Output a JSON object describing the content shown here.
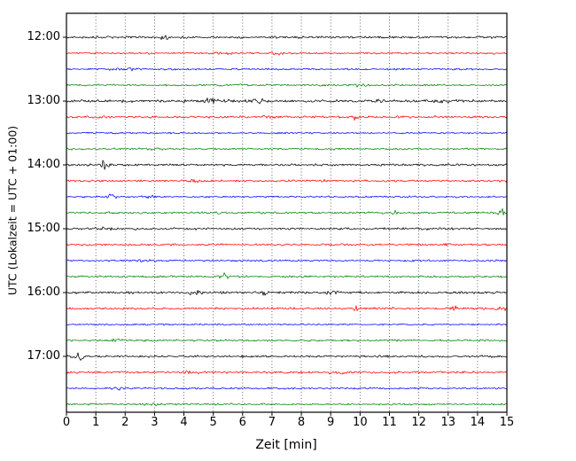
{
  "chart_data": {
    "type": "line",
    "title": "",
    "xlabel": "Zeit [min]",
    "ylabel": "UTC (Lokalzeit = UTC + 01:00)",
    "xlim": [
      0,
      15
    ],
    "x_ticks": [
      "0",
      "1",
      "2",
      "3",
      "4",
      "5",
      "6",
      "7",
      "8",
      "9",
      "10",
      "11",
      "12",
      "13",
      "14",
      "15"
    ],
    "y_hour_labels": [
      "12:00",
      "13:00",
      "14:00",
      "15:00",
      "16:00",
      "17:00"
    ],
    "grid": "vertical-dotted",
    "legend": "none",
    "trace_colors": {
      "black": "#000000",
      "red": "#ff0000",
      "blue": "#0000ff",
      "green": "#008000"
    },
    "rows": [
      {
        "start": "12:00",
        "color": "black",
        "seed": 101,
        "base": 1.0,
        "events": [
          {
            "t": 3.35,
            "amp": 3.2,
            "w": 0.12
          }
        ]
      },
      {
        "start": "12:15",
        "color": "red",
        "seed": 102,
        "base": 0.8,
        "events": [
          {
            "t": 5.5,
            "amp": 1.0,
            "w": 0.3
          },
          {
            "t": 7.2,
            "amp": 0.9,
            "w": 0.2
          }
        ]
      },
      {
        "start": "12:30",
        "color": "blue",
        "seed": 103,
        "base": 0.8,
        "events": [
          {
            "t": 2.0,
            "amp": 0.8,
            "w": 0.4
          },
          {
            "t": 7.0,
            "amp": 0.7,
            "w": 0.3
          }
        ]
      },
      {
        "start": "12:45",
        "color": "green",
        "seed": 104,
        "base": 0.8,
        "events": [
          {
            "t": 10.0,
            "amp": 0.7,
            "w": 0.3
          }
        ]
      },
      {
        "start": "13:00",
        "color": "black",
        "seed": 105,
        "base": 1.2,
        "events": [
          {
            "t": 4.9,
            "amp": 1.8,
            "w": 0.3
          },
          {
            "t": 6.5,
            "amp": 1.2,
            "w": 0.3
          },
          {
            "t": 10.6,
            "amp": 1.7,
            "w": 0.15
          },
          {
            "t": 12.8,
            "amp": 1.2,
            "w": 0.4
          }
        ]
      },
      {
        "start": "13:15",
        "color": "red",
        "seed": 106,
        "base": 1.0,
        "events": [
          {
            "t": 6.9,
            "amp": 1.7,
            "w": 0.2
          },
          {
            "t": 9.85,
            "amp": 2.4,
            "w": 0.1
          }
        ]
      },
      {
        "start": "13:30",
        "color": "blue",
        "seed": 107,
        "base": 0.7,
        "events": []
      },
      {
        "start": "13:45",
        "color": "green",
        "seed": 108,
        "base": 0.8,
        "events": [
          {
            "t": 3.0,
            "amp": 0.7,
            "w": 0.3
          }
        ]
      },
      {
        "start": "14:00",
        "color": "black",
        "seed": 109,
        "base": 1.0,
        "events": [
          {
            "t": 1.3,
            "amp": 3.0,
            "w": 0.18
          }
        ]
      },
      {
        "start": "14:15",
        "color": "red",
        "seed": 110,
        "base": 0.9,
        "events": [
          {
            "t": 4.35,
            "amp": 2.2,
            "w": 0.12
          },
          {
            "t": 8.7,
            "amp": 2.4,
            "w": 0.12
          }
        ]
      },
      {
        "start": "14:30",
        "color": "blue",
        "seed": 111,
        "base": 0.8,
        "events": [
          {
            "t": 1.5,
            "amp": 1.8,
            "w": 0.15
          },
          {
            "t": 2.9,
            "amp": 1.0,
            "w": 0.2
          }
        ]
      },
      {
        "start": "14:45",
        "color": "green",
        "seed": 112,
        "base": 0.9,
        "events": [
          {
            "t": 11.2,
            "amp": 1.3,
            "w": 0.2
          },
          {
            "t": 14.75,
            "amp": 3.6,
            "w": 0.15
          }
        ]
      },
      {
        "start": "15:00",
        "color": "black",
        "seed": 113,
        "base": 1.0,
        "events": [
          {
            "t": 1.2,
            "amp": 1.0,
            "w": 0.3
          }
        ]
      },
      {
        "start": "15:15",
        "color": "red",
        "seed": 114,
        "base": 0.9,
        "events": [
          {
            "t": 3.55,
            "amp": 2.2,
            "w": 0.12
          },
          {
            "t": 13.0,
            "amp": 1.0,
            "w": 0.2
          }
        ]
      },
      {
        "start": "15:30",
        "color": "blue",
        "seed": 115,
        "base": 0.8,
        "events": [
          {
            "t": 2.5,
            "amp": 1.3,
            "w": 0.2
          }
        ]
      },
      {
        "start": "15:45",
        "color": "green",
        "seed": 116,
        "base": 0.9,
        "events": [
          {
            "t": 5.35,
            "amp": 3.0,
            "w": 0.15
          }
        ]
      },
      {
        "start": "16:00",
        "color": "black",
        "seed": 117,
        "base": 1.1,
        "events": [
          {
            "t": 4.4,
            "amp": 1.5,
            "w": 0.2
          },
          {
            "t": 6.7,
            "amp": 1.7,
            "w": 0.15
          },
          {
            "t": 9.0,
            "amp": 1.0,
            "w": 0.3
          }
        ]
      },
      {
        "start": "16:15",
        "color": "red",
        "seed": 118,
        "base": 1.0,
        "events": [
          {
            "t": 9.9,
            "amp": 2.2,
            "w": 0.12
          },
          {
            "t": 13.2,
            "amp": 1.9,
            "w": 0.15
          },
          {
            "t": 14.8,
            "amp": 2.6,
            "w": 0.12
          }
        ]
      },
      {
        "start": "16:30",
        "color": "blue",
        "seed": 119,
        "base": 0.7,
        "events": []
      },
      {
        "start": "16:45",
        "color": "green",
        "seed": 120,
        "base": 0.9,
        "events": [
          {
            "t": 1.7,
            "amp": 1.9,
            "w": 0.15
          }
        ]
      },
      {
        "start": "17:00",
        "color": "black",
        "seed": 121,
        "base": 1.0,
        "events": [
          {
            "t": 0.45,
            "amp": 3.0,
            "w": 0.2
          }
        ]
      },
      {
        "start": "17:15",
        "color": "red",
        "seed": 122,
        "base": 1.0,
        "events": [
          {
            "t": 4.2,
            "amp": 1.1,
            "w": 0.3
          },
          {
            "t": 9.3,
            "amp": 1.0,
            "w": 0.3
          }
        ]
      },
      {
        "start": "17:30",
        "color": "blue",
        "seed": 123,
        "base": 0.8,
        "events": [
          {
            "t": 1.7,
            "amp": 1.0,
            "w": 0.2
          }
        ]
      },
      {
        "start": "17:45",
        "color": "green",
        "seed": 124,
        "base": 0.8,
        "events": [
          {
            "t": 3.0,
            "amp": 0.7,
            "w": 0.4
          }
        ]
      }
    ]
  }
}
